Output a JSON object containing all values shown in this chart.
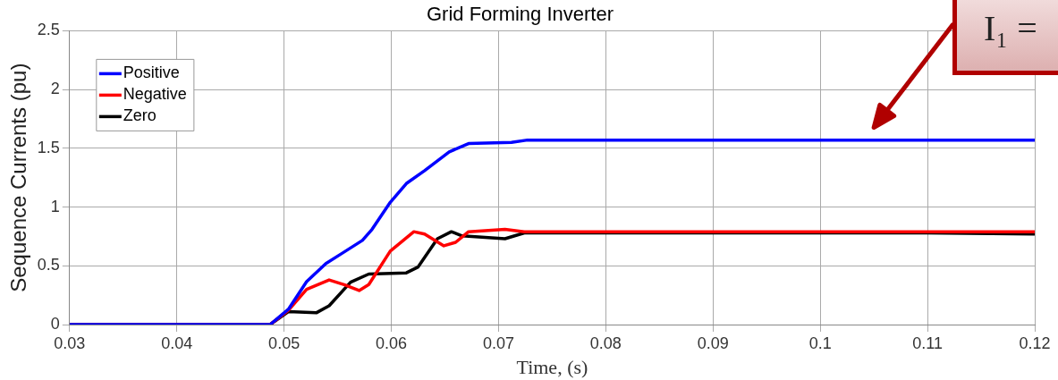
{
  "chart_data": {
    "type": "line",
    "title": "Grid Forming Inverter",
    "xlabel": "Time, (s)",
    "ylabel": "Sequence Currents (pu)",
    "xlim": [
      0.03,
      0.12
    ],
    "xticks": [
      0.03,
      0.04,
      0.05,
      0.06,
      0.07,
      0.08,
      0.09,
      0.1,
      0.11,
      0.12
    ],
    "ylim": [
      0,
      2.5
    ],
    "yticks": [
      0,
      0.5,
      1,
      1.5,
      2,
      2.5
    ],
    "grid": true,
    "legend": "top left",
    "marker": "none",
    "line_style": "solid",
    "annotations": [
      "I₁ ="
    ],
    "series": [
      {
        "name": "Positive",
        "color": "#0000ff",
        "x": [
          0.03,
          0.0487,
          0.0504,
          0.0521,
          0.0539,
          0.0553,
          0.0573,
          0.0582,
          0.0599,
          0.0614,
          0.0631,
          0.0654,
          0.0672,
          0.0712,
          0.0727,
          0.08,
          0.09,
          0.1,
          0.11,
          0.12
        ],
        "values": [
          0,
          0,
          0.13,
          0.365,
          0.52,
          0.6,
          0.716,
          0.81,
          1.04,
          1.2,
          1.31,
          1.47,
          1.54,
          1.55,
          1.57,
          1.57,
          1.57,
          1.57,
          1.57,
          1.57
        ]
      },
      {
        "name": "Negative",
        "color": "#ff0000",
        "x": [
          0.03,
          0.0487,
          0.0504,
          0.0521,
          0.0542,
          0.0556,
          0.057,
          0.0579,
          0.0599,
          0.0621,
          0.0631,
          0.0649,
          0.066,
          0.0672,
          0.0706,
          0.0724,
          0.08,
          0.09,
          0.1,
          0.11,
          0.12
        ],
        "values": [
          0,
          0,
          0.12,
          0.3,
          0.38,
          0.34,
          0.29,
          0.34,
          0.625,
          0.79,
          0.77,
          0.67,
          0.7,
          0.79,
          0.81,
          0.79,
          0.79,
          0.79,
          0.79,
          0.79,
          0.79
        ]
      },
      {
        "name": "Zero",
        "color": "#000000",
        "x": [
          0.03,
          0.0487,
          0.0504,
          0.053,
          0.0542,
          0.0562,
          0.0579,
          0.0614,
          0.0625,
          0.0643,
          0.0656,
          0.0666,
          0.0706,
          0.0724,
          0.08,
          0.09,
          0.1,
          0.11,
          0.12
        ],
        "values": [
          0,
          0,
          0.11,
          0.1,
          0.16,
          0.36,
          0.43,
          0.44,
          0.49,
          0.73,
          0.79,
          0.755,
          0.73,
          0.78,
          0.78,
          0.78,
          0.78,
          0.78,
          0.77
        ]
      }
    ]
  }
}
